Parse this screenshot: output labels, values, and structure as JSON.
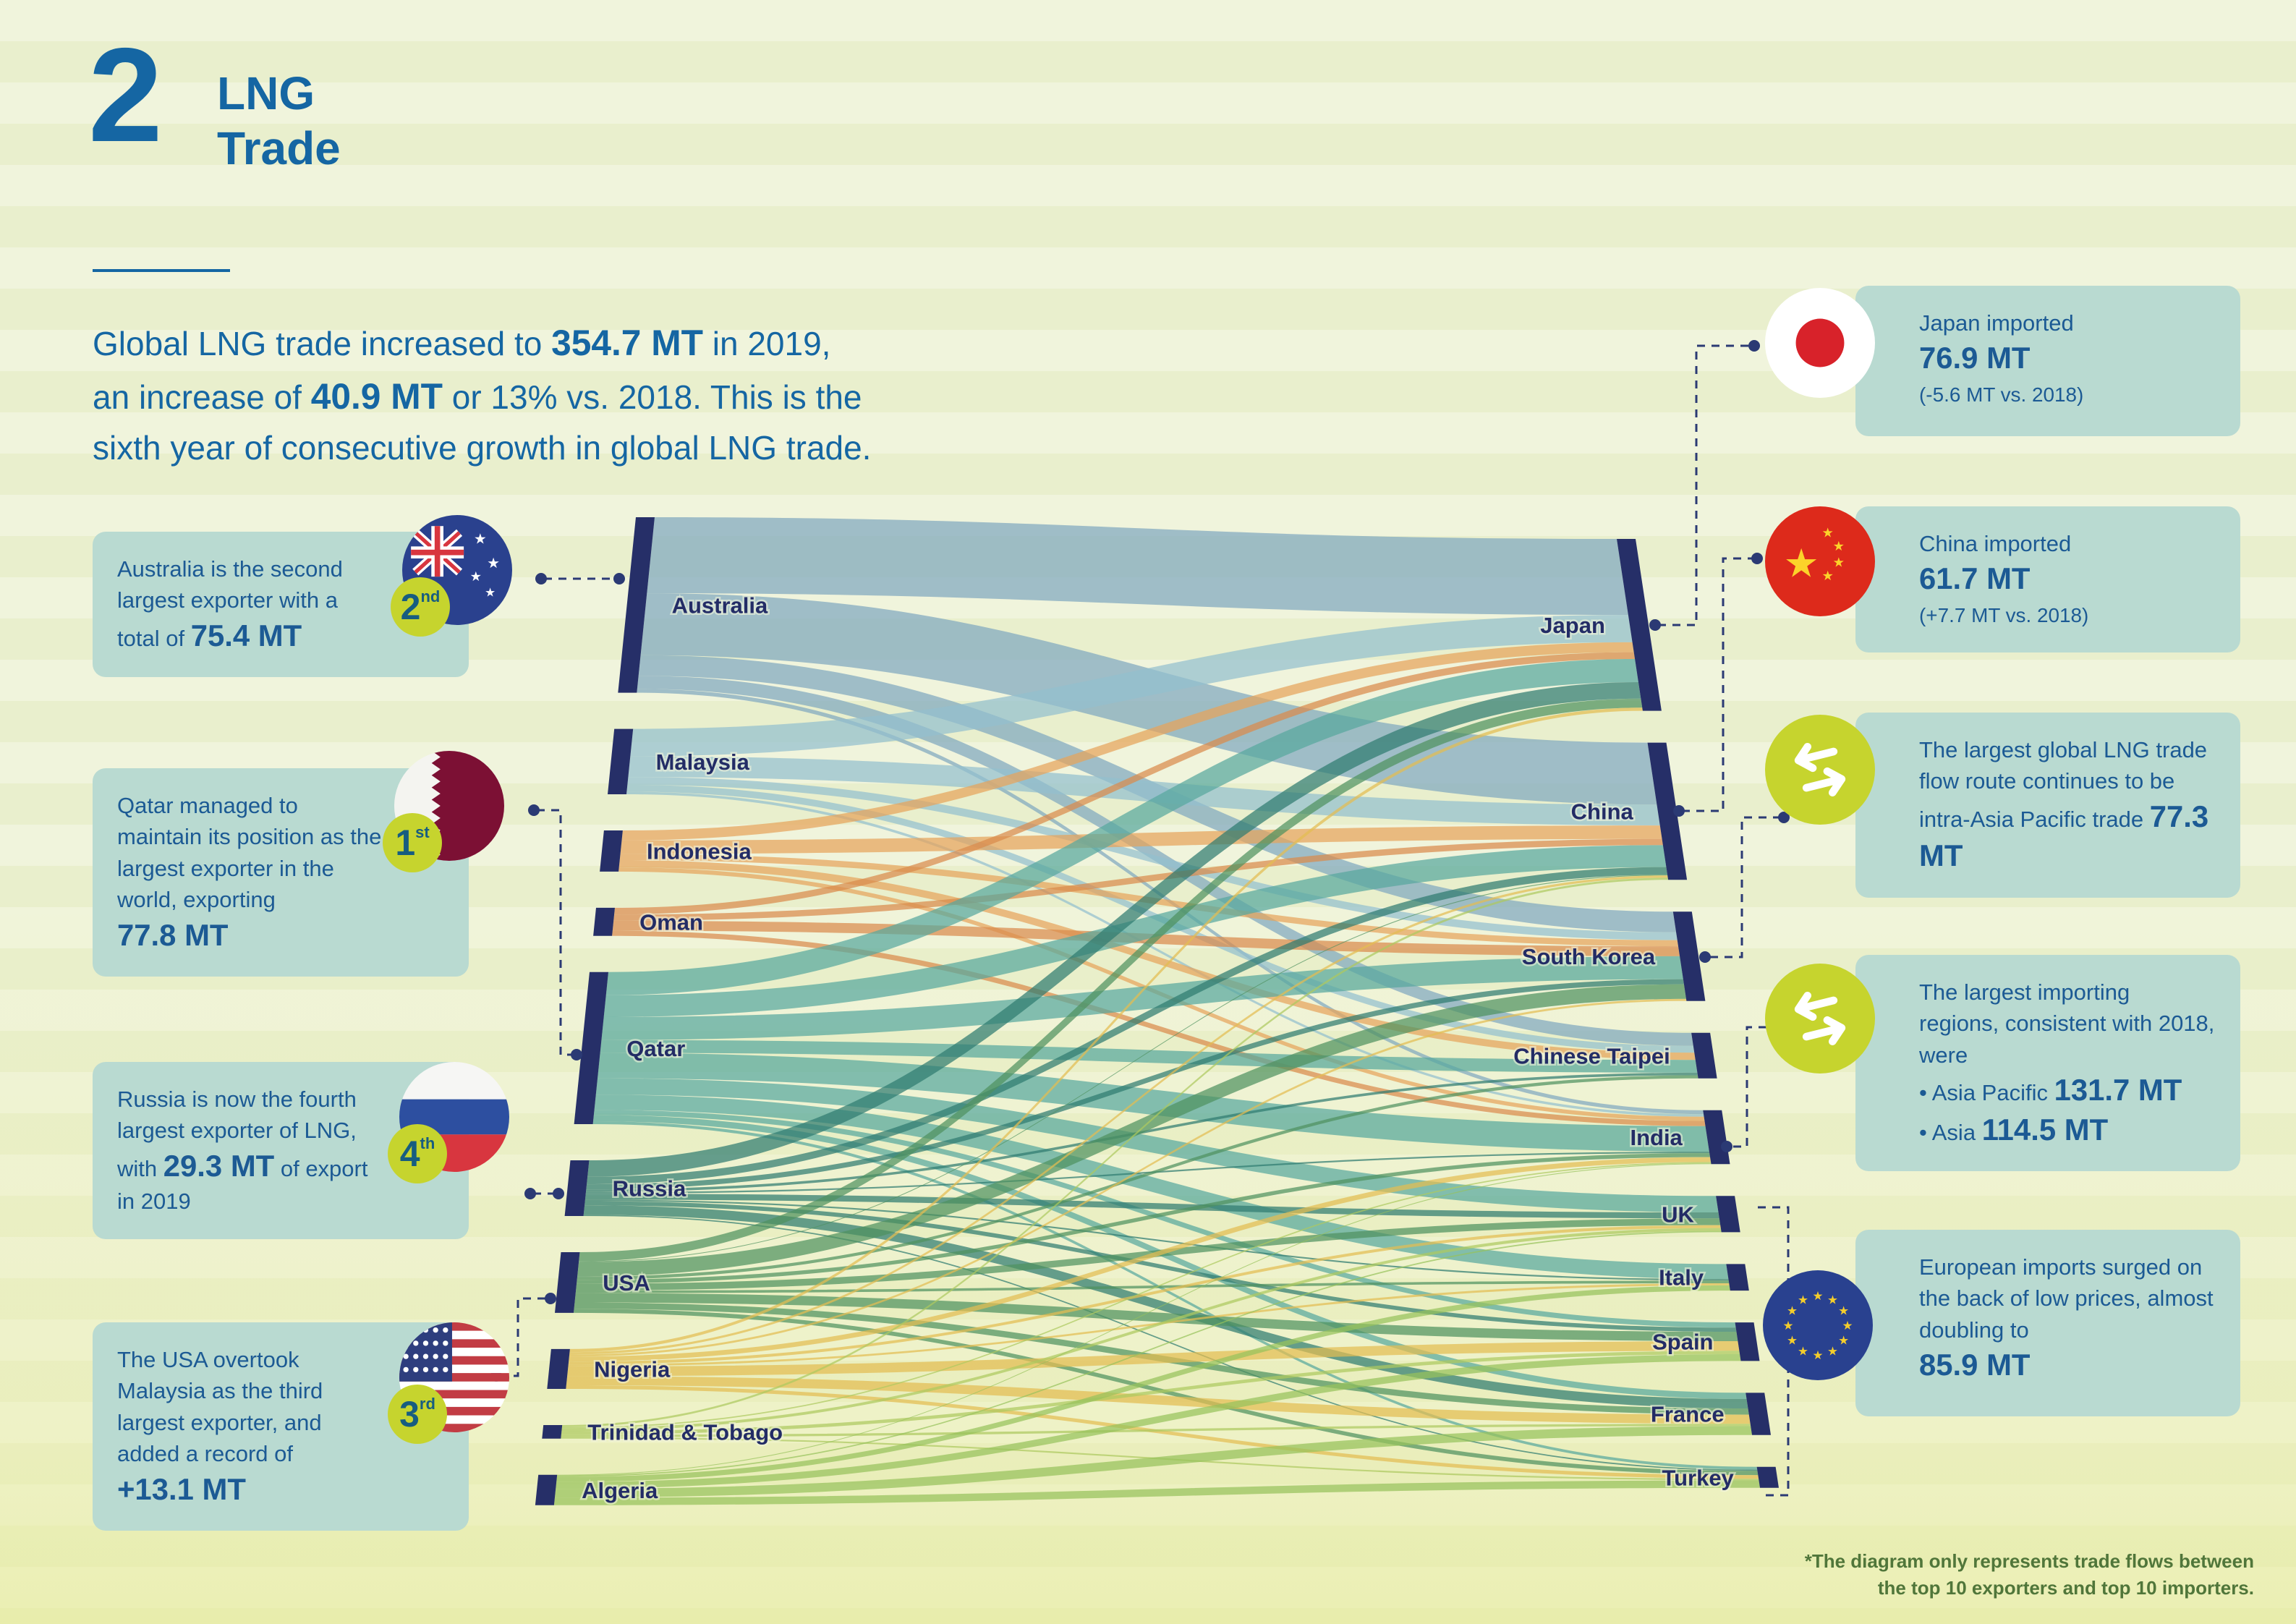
{
  "palette": {
    "blue": "#1566a3",
    "card-bg": "#b9dad1",
    "lime": "#c6d42e",
    "text-blue": "#1c5a94",
    "label-navy": "#232c66",
    "connector": "#2b3a74",
    "badge-text": "#175d80",
    "footnote": "#50763a",
    "bar-navy": "#262f68"
  },
  "header": {
    "section_number": "2",
    "title_line1": "LNG",
    "title_line2": "Trade"
  },
  "intro": {
    "segments": [
      {
        "t": "Global LNG trade increased to "
      },
      {
        "t": "354.7 MT",
        "b": true
      },
      {
        "t": " in 2019,"
      },
      {
        "br": true
      },
      {
        "t": "an increase of "
      },
      {
        "t": "40.9 MT",
        "b": true
      },
      {
        "t": " or 13% vs. 2018. This is the"
      },
      {
        "br": true
      },
      {
        "t": "sixth year of consecutive growth in global LNG trade."
      }
    ]
  },
  "left_callouts": [
    {
      "icon": "australia-flag",
      "rank": "2",
      "rank_suffix": "nd",
      "segments": [
        {
          "t": "Australia is the second largest exporter with a total of "
        },
        {
          "t": "75.4 MT",
          "b": true
        }
      ]
    },
    {
      "icon": "qatar-flag",
      "rank": "1",
      "rank_suffix": "st",
      "segments": [
        {
          "t": "Qatar managed to maintain its position as the largest exporter in the world, exporting"
        },
        {
          "br": true
        },
        {
          "t": "77.8 MT",
          "b": true
        }
      ]
    },
    {
      "icon": "russia-flag",
      "rank": "4",
      "rank_suffix": "th",
      "segments": [
        {
          "t": "Russia is now the fourth largest exporter of LNG, with "
        },
        {
          "t": "29.3 MT",
          "b": true
        },
        {
          "t": " of export in 2019"
        }
      ]
    },
    {
      "icon": "usa-flag",
      "rank": "3",
      "rank_suffix": "rd",
      "segments": [
        {
          "t": "The USA overtook Malaysia as the third largest exporter, and added a record of"
        },
        {
          "br": true
        },
        {
          "t": "+13.1 MT",
          "b": true
        }
      ]
    }
  ],
  "right_callouts": [
    {
      "icon": "japan-flag",
      "segments": [
        {
          "t": "Japan imported"
        },
        {
          "br": true
        },
        {
          "t": "76.9 MT",
          "b": true
        },
        {
          "br": true
        },
        {
          "t": "(-5.6 MT vs. 2018)",
          "s": true
        }
      ]
    },
    {
      "icon": "china-flag",
      "segments": [
        {
          "t": "China imported"
        },
        {
          "br": true
        },
        {
          "t": "61.7 MT",
          "b": true
        },
        {
          "br": true
        },
        {
          "t": "(+7.7 MT vs. 2018)",
          "s": true
        }
      ]
    },
    {
      "icon": "exchange-arrows",
      "segments": [
        {
          "t": "The largest global LNG trade flow route continues to be intra-Asia Pacific trade "
        },
        {
          "t": "77.3 MT",
          "b": true
        }
      ]
    },
    {
      "icon": "exchange-arrows",
      "segments": [
        {
          "t": "The largest importing regions, consistent with 2018, were"
        },
        {
          "br": true
        },
        {
          "t": "• Asia Pacific "
        },
        {
          "t": "131.7 MT",
          "b": true
        },
        {
          "br": true
        },
        {
          "t": "• Asia "
        },
        {
          "t": "114.5 MT",
          "b": true
        }
      ]
    },
    {
      "icon": "eu-flag",
      "segments": [
        {
          "t": "European imports surged on the back of low prices, almost doubling to"
        },
        {
          "br": true
        },
        {
          "t": "85.9 MT",
          "b": true
        }
      ]
    }
  ],
  "footnote": {
    "line1": "*The diagram only represents trade flows between",
    "line2": "the top 10 exporters and top 10 importers."
  },
  "chart_data": {
    "type": "sankey",
    "unit": "MT",
    "title": "LNG trade flows between the top 10 exporters and top 10 importers, 2019",
    "exporters": [
      "Australia",
      "Malaysia",
      "Indonesia",
      "Oman",
      "Qatar",
      "Russia",
      "USA",
      "Nigeria",
      "Trinidad & Tobago",
      "Algeria"
    ],
    "importers": [
      "Japan",
      "China",
      "South Korea",
      "Chinese Taipei",
      "India",
      "UK",
      "Italy",
      "Spain",
      "France",
      "Turkey"
    ],
    "exporter_colors": {
      "Australia": "#7fa8bf",
      "Malaysia": "#93bfce",
      "Indonesia": "#e6a35b",
      "Oman": "#d98a4c",
      "Qatar": "#57a79e",
      "Russia": "#2f7b70",
      "USA": "#4f9160",
      "Nigeria": "#e3bd52",
      "Trinidad & Tobago": "#adc95f",
      "Algeria": "#97c25c"
    },
    "stated_totals": {
      "global_trade_mt": 354.7,
      "increase_mt": 40.9,
      "increase_pct": 13,
      "qatar_export_mt": 77.8,
      "australia_export_mt": 75.4,
      "russia_export_mt": 29.3,
      "usa_added_mt": 13.1,
      "japan_import_mt": 76.9,
      "china_import_mt": 61.7,
      "intra_asia_pacific_trade_mt": 77.3,
      "asia_pacific_imports_mt": 131.7,
      "asia_imports_mt": 114.5,
      "europe_imports_mt": 85.9
    },
    "flows_note": "Individual flow values are visual estimates; only node names and callout totals are labeled in the figure.",
    "flows": [
      {
        "source": "Australia",
        "target": "Japan",
        "value": 29.2
      },
      {
        "source": "Australia",
        "target": "China",
        "value": 23.8
      },
      {
        "source": "Australia",
        "target": "South Korea",
        "value": 7.9
      },
      {
        "source": "Australia",
        "target": "Chinese Taipei",
        "value": 5.0
      },
      {
        "source": "Australia",
        "target": "India",
        "value": 1.5
      },
      {
        "source": "Malaysia",
        "target": "Japan",
        "value": 10.5
      },
      {
        "source": "Malaysia",
        "target": "China",
        "value": 8.0
      },
      {
        "source": "Malaysia",
        "target": "South Korea",
        "value": 3.0
      },
      {
        "source": "Malaysia",
        "target": "Chinese Taipei",
        "value": 2.6
      },
      {
        "source": "Malaysia",
        "target": "India",
        "value": 1.0
      },
      {
        "source": "Indonesia",
        "target": "Japan",
        "value": 3.8
      },
      {
        "source": "Indonesia",
        "target": "China",
        "value": 5.2
      },
      {
        "source": "Indonesia",
        "target": "South Korea",
        "value": 2.4
      },
      {
        "source": "Indonesia",
        "target": "Chinese Taipei",
        "value": 2.8
      },
      {
        "source": "Indonesia",
        "target": "India",
        "value": 1.6
      },
      {
        "source": "Oman",
        "target": "Japan",
        "value": 2.6
      },
      {
        "source": "Oman",
        "target": "China",
        "value": 2.4
      },
      {
        "source": "Oman",
        "target": "South Korea",
        "value": 3.8
      },
      {
        "source": "Oman",
        "target": "India",
        "value": 2.0
      },
      {
        "source": "Qatar",
        "target": "Japan",
        "value": 8.9
      },
      {
        "source": "Qatar",
        "target": "China",
        "value": 8.4
      },
      {
        "source": "Qatar",
        "target": "South Korea",
        "value": 8.8
      },
      {
        "source": "Qatar",
        "target": "Chinese Taipei",
        "value": 4.9
      },
      {
        "source": "Qatar",
        "target": "India",
        "value": 9.8
      },
      {
        "source": "Qatar",
        "target": "UK",
        "value": 6.3
      },
      {
        "source": "Qatar",
        "target": "Italy",
        "value": 5.8
      },
      {
        "source": "Qatar",
        "target": "Spain",
        "value": 2.0
      },
      {
        "source": "Qatar",
        "target": "France",
        "value": 2.4
      },
      {
        "source": "Qatar",
        "target": "Turkey",
        "value": 1.1
      },
      {
        "source": "Russia",
        "target": "Japan",
        "value": 6.3
      },
      {
        "source": "Russia",
        "target": "China",
        "value": 2.9
      },
      {
        "source": "Russia",
        "target": "South Korea",
        "value": 2.0
      },
      {
        "source": "Russia",
        "target": "Chinese Taipei",
        "value": 1.0
      },
      {
        "source": "Russia",
        "target": "India",
        "value": 0.6
      },
      {
        "source": "Russia",
        "target": "UK",
        "value": 2.3
      },
      {
        "source": "Russia",
        "target": "Italy",
        "value": 0.6
      },
      {
        "source": "Russia",
        "target": "Spain",
        "value": 1.6
      },
      {
        "source": "Russia",
        "target": "France",
        "value": 3.6
      },
      {
        "source": "Russia",
        "target": "Turkey",
        "value": 0.5
      },
      {
        "source": "USA",
        "target": "Japan",
        "value": 3.5
      },
      {
        "source": "USA",
        "target": "China",
        "value": 0.3
      },
      {
        "source": "USA",
        "target": "South Korea",
        "value": 5.6
      },
      {
        "source": "USA",
        "target": "Chinese Taipei",
        "value": 1.2
      },
      {
        "source": "USA",
        "target": "India",
        "value": 1.5
      },
      {
        "source": "USA",
        "target": "UK",
        "value": 2.6
      },
      {
        "source": "USA",
        "target": "Italy",
        "value": 1.0
      },
      {
        "source": "USA",
        "target": "Spain",
        "value": 3.6
      },
      {
        "source": "USA",
        "target": "France",
        "value": 2.4
      },
      {
        "source": "USA",
        "target": "Turkey",
        "value": 1.6
      },
      {
        "source": "Nigeria",
        "target": "Japan",
        "value": 1.2
      },
      {
        "source": "Nigeria",
        "target": "China",
        "value": 0.9
      },
      {
        "source": "Nigeria",
        "target": "South Korea",
        "value": 0.8
      },
      {
        "source": "Nigeria",
        "target": "India",
        "value": 1.9
      },
      {
        "source": "Nigeria",
        "target": "UK",
        "value": 1.1
      },
      {
        "source": "Nigeria",
        "target": "Italy",
        "value": 0.8
      },
      {
        "source": "Nigeria",
        "target": "Spain",
        "value": 3.7
      },
      {
        "source": "Nigeria",
        "target": "France",
        "value": 3.5
      },
      {
        "source": "Nigeria",
        "target": "Turkey",
        "value": 1.4
      },
      {
        "source": "Trinidad & Tobago",
        "target": "China",
        "value": 0.8
      },
      {
        "source": "Trinidad & Tobago",
        "target": "India",
        "value": 0.5
      },
      {
        "source": "Trinidad & Tobago",
        "target": "UK",
        "value": 1.1
      },
      {
        "source": "Trinidad & Tobago",
        "target": "Spain",
        "value": 1.3
      },
      {
        "source": "Trinidad & Tobago",
        "target": "France",
        "value": 0.9
      },
      {
        "source": "Trinidad & Tobago",
        "target": "Turkey",
        "value": 0.6
      },
      {
        "source": "Algeria",
        "target": "India",
        "value": 0.3
      },
      {
        "source": "Algeria",
        "target": "UK",
        "value": 0.5
      },
      {
        "source": "Algeria",
        "target": "Italy",
        "value": 2.0
      },
      {
        "source": "Algeria",
        "target": "Spain",
        "value": 2.6
      },
      {
        "source": "Algeria",
        "target": "France",
        "value": 3.4
      },
      {
        "source": "Algeria",
        "target": "Turkey",
        "value": 2.9
      }
    ]
  }
}
